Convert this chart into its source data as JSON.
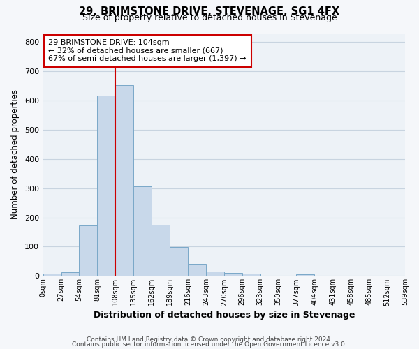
{
  "title": "29, BRIMSTONE DRIVE, STEVENAGE, SG1 4FX",
  "subtitle": "Size of property relative to detached houses in Stevenage",
  "xlabel": "Distribution of detached houses by size in Stevenage",
  "ylabel": "Number of detached properties",
  "bar_color": "#c8d8ea",
  "bar_edge_color": "#7aa8c8",
  "grid_color": "#c8d4e0",
  "background_color": "#edf2f7",
  "fig_background_color": "#f5f7fa",
  "bin_edges": [
    0,
    27,
    54,
    81,
    108,
    135,
    162,
    189,
    216,
    243,
    270,
    297,
    324,
    351,
    378,
    405,
    432,
    459,
    486,
    513,
    540
  ],
  "bin_labels": [
    "0sqm",
    "27sqm",
    "54sqm",
    "81sqm",
    "108sqm",
    "135sqm",
    "162sqm",
    "189sqm",
    "216sqm",
    "243sqm",
    "270sqm",
    "296sqm",
    "323sqm",
    "350sqm",
    "377sqm",
    "404sqm",
    "431sqm",
    "458sqm",
    "485sqm",
    "512sqm",
    "539sqm"
  ],
  "bar_heights": [
    7,
    12,
    172,
    617,
    652,
    307,
    174,
    98,
    42,
    15,
    10,
    8,
    0,
    0,
    5,
    0,
    0,
    0,
    0,
    0
  ],
  "vline_x": 108,
  "vline_color": "#cc0000",
  "annotation_title": "29 BRIMSTONE DRIVE: 104sqm",
  "annotation_line2": "← 32% of detached houses are smaller (667)",
  "annotation_line3": "67% of semi-detached houses are larger (1,397) →",
  "annotation_box_facecolor": "#ffffff",
  "annotation_box_edgecolor": "#cc0000",
  "ylim": [
    0,
    830
  ],
  "yticks": [
    0,
    100,
    200,
    300,
    400,
    500,
    600,
    700,
    800
  ],
  "footer1": "Contains HM Land Registry data © Crown copyright and database right 2024.",
  "footer2": "Contains public sector information licensed under the Open Government Licence v3.0."
}
